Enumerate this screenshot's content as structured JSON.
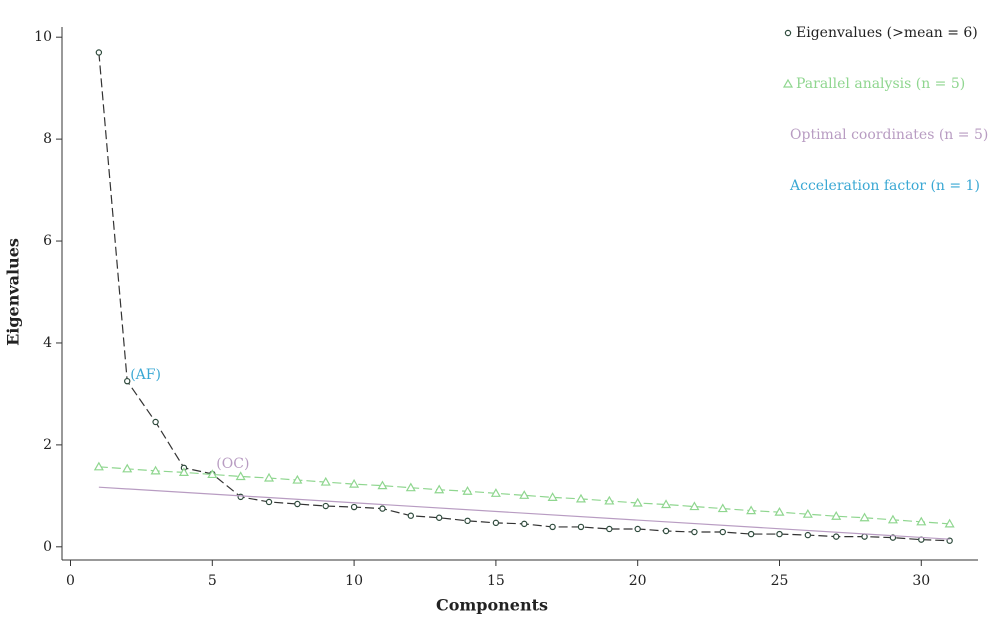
{
  "chart_data": {
    "type": "line",
    "xlabel": "Components",
    "ylabel": "Eigenvalues",
    "xlim": [
      -0.3,
      32
    ],
    "ylim": [
      -0.2,
      10.2
    ],
    "xticks": [
      0,
      5,
      10,
      15,
      20,
      25,
      30
    ],
    "yticks": [
      0,
      2,
      4,
      6,
      8,
      10
    ],
    "legend": "top-right",
    "annotations": [
      "(AF)",
      "(OC)"
    ],
    "series": [
      {
        "name": "Eigenvalues (>mean = 6)",
        "color": "#2e4a3c",
        "marker": "circle",
        "x": [
          1,
          2,
          3,
          4,
          5,
          6,
          7,
          8,
          9,
          10,
          11,
          12,
          13,
          14,
          15,
          16,
          17,
          18,
          19,
          20,
          21,
          22,
          23,
          24,
          25,
          26,
          27,
          28,
          29,
          30,
          31
        ],
        "values": [
          9.7,
          3.25,
          2.45,
          1.55,
          1.43,
          0.98,
          0.88,
          0.84,
          0.8,
          0.78,
          0.75,
          0.61,
          0.57,
          0.51,
          0.47,
          0.45,
          0.39,
          0.39,
          0.35,
          0.35,
          0.31,
          0.29,
          0.29,
          0.25,
          0.25,
          0.23,
          0.2,
          0.2,
          0.18,
          0.14,
          0.12
        ]
      },
      {
        "name": "Parallel analysis (n = 5)",
        "color": "#8fd68f",
        "marker": "triangle",
        "x": [
          1,
          2,
          3,
          4,
          5,
          6,
          7,
          8,
          9,
          10,
          11,
          12,
          13,
          14,
          15,
          16,
          17,
          18,
          19,
          20,
          21,
          22,
          23,
          24,
          25,
          26,
          27,
          28,
          29,
          30,
          31
        ],
        "values": [
          1.57,
          1.53,
          1.49,
          1.46,
          1.42,
          1.38,
          1.35,
          1.31,
          1.27,
          1.23,
          1.2,
          1.16,
          1.12,
          1.09,
          1.05,
          1.01,
          0.97,
          0.94,
          0.9,
          0.86,
          0.83,
          0.79,
          0.75,
          0.71,
          0.68,
          0.64,
          0.6,
          0.57,
          0.53,
          0.49,
          0.45
        ]
      },
      {
        "name": "Optimal coordinates (n = 5)",
        "color": "#b89cc2",
        "marker": "none",
        "x": [
          1,
          31
        ],
        "values": [
          1.17,
          0.15
        ]
      },
      {
        "name": "Acceleration factor (n = 1)",
        "color": "#3aa8d4",
        "marker": "none"
      }
    ]
  }
}
